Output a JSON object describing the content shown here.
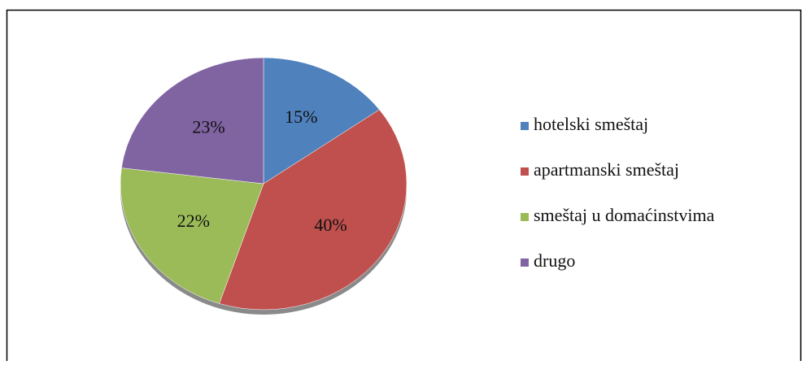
{
  "chart_data": {
    "type": "pie",
    "categories": [
      "hotelski smeštaj",
      "apartmanski smeštaj",
      "smeštaj u domaćinstvima",
      "drugo"
    ],
    "values": [
      15,
      40,
      22,
      23
    ],
    "value_labels": [
      "15%",
      "40%",
      "22%",
      "23%"
    ],
    "colors": [
      "#4f81bd",
      "#c0504d",
      "#9bbb59",
      "#8064a2"
    ],
    "legend": "right"
  }
}
